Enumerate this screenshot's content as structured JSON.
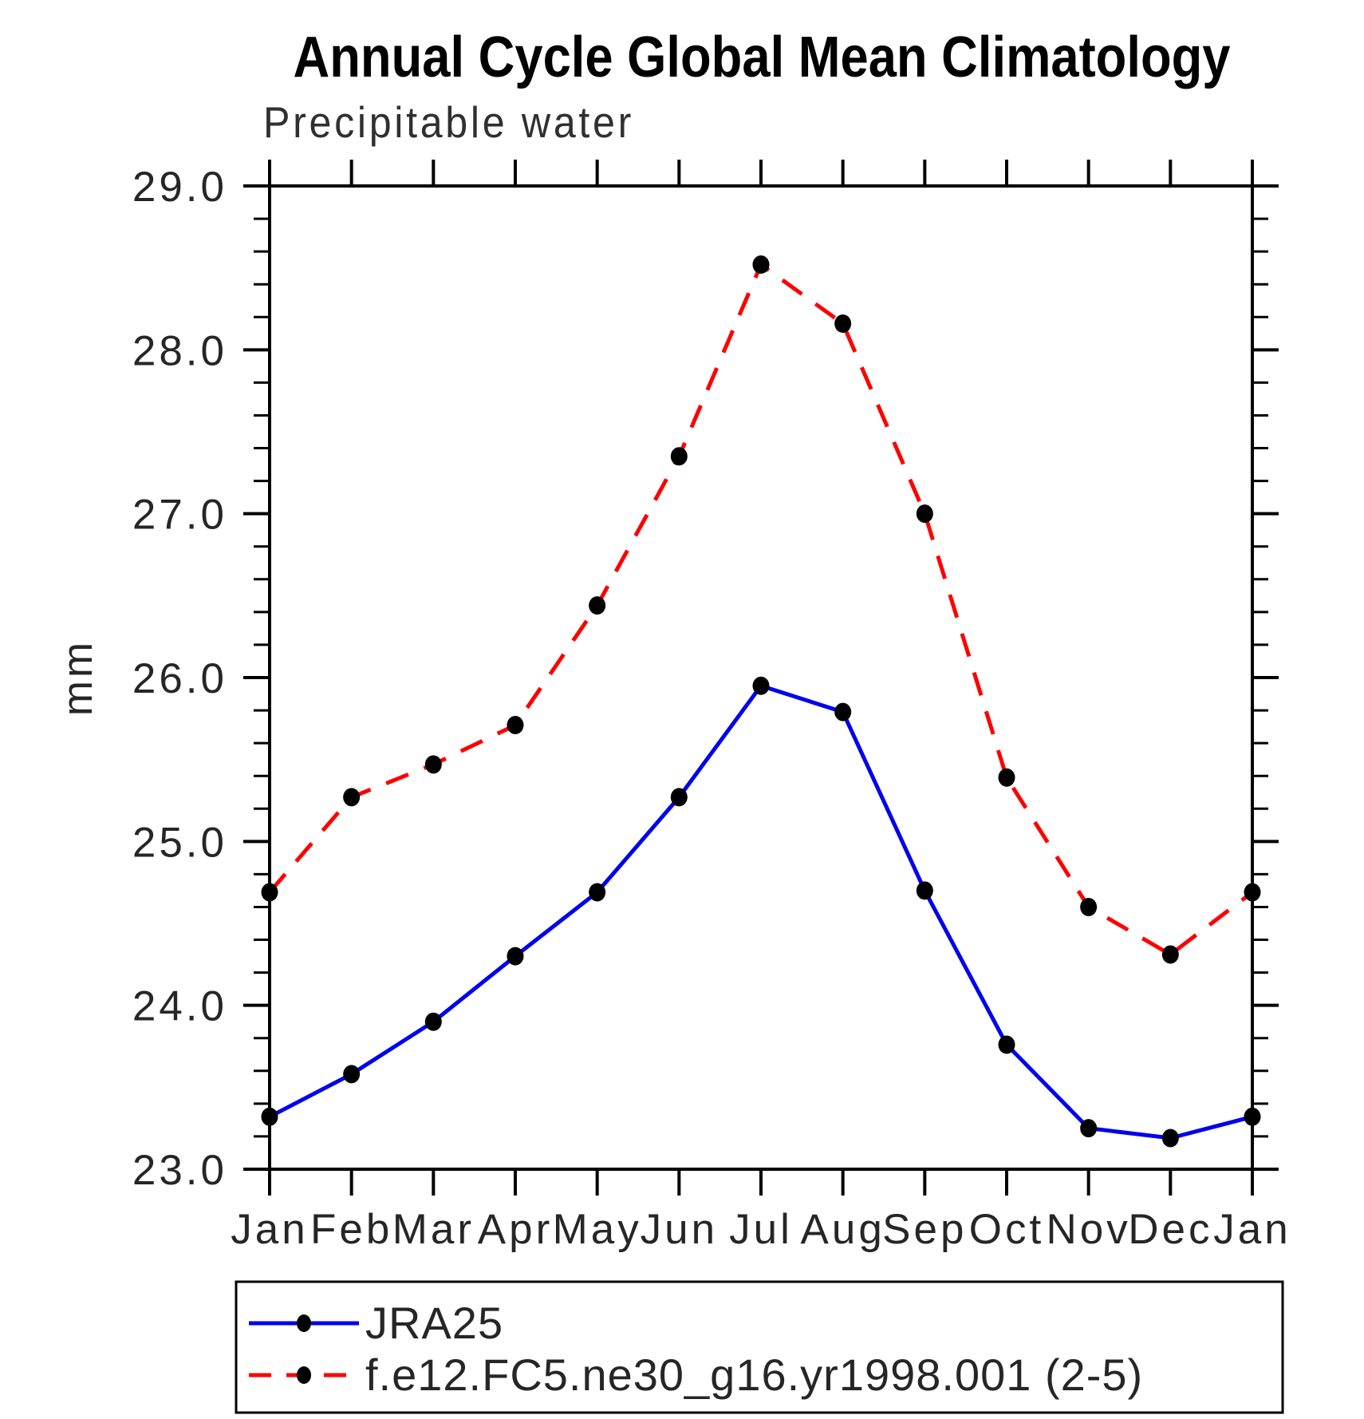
{
  "chart_data": {
    "type": "line",
    "title": "Annual Cycle Global Mean Climatology",
    "subtitle": "Precipitable water",
    "ylabel": "mm",
    "xlabel": "",
    "categories": [
      "Jan",
      "Feb",
      "Mar",
      "Apr",
      "May",
      "Jun",
      "Jul",
      "Aug",
      "Sep",
      "Oct",
      "Nov",
      "Dec",
      "Jan"
    ],
    "ylim": [
      23.0,
      29.0
    ],
    "y_major_step": 1.0,
    "y_minor_step": 0.2,
    "y_tick_labels": [
      "23.0",
      "24.0",
      "25.0",
      "26.0",
      "27.0",
      "28.0",
      "29.0"
    ],
    "grid": "off",
    "legend_position": "bottom-left-box",
    "marker_color": "#000000",
    "series": [
      {
        "name": "JRA25",
        "color": "#0000ee",
        "line_style": "solid",
        "marker": "filled-circle",
        "values": [
          23.32,
          23.58,
          23.9,
          24.3,
          24.69,
          25.27,
          25.95,
          25.79,
          24.7,
          23.76,
          23.25,
          23.19,
          23.32
        ]
      },
      {
        "name": "f.e12.FC5.ne30_g16.yr1998.001 (2-5)",
        "color": "#ff0000",
        "line_style": "dashed",
        "marker": "filled-circle",
        "values": [
          24.69,
          25.27,
          25.47,
          25.71,
          26.44,
          27.35,
          28.52,
          28.16,
          27.0,
          25.39,
          24.6,
          24.31,
          24.69
        ]
      }
    ]
  }
}
